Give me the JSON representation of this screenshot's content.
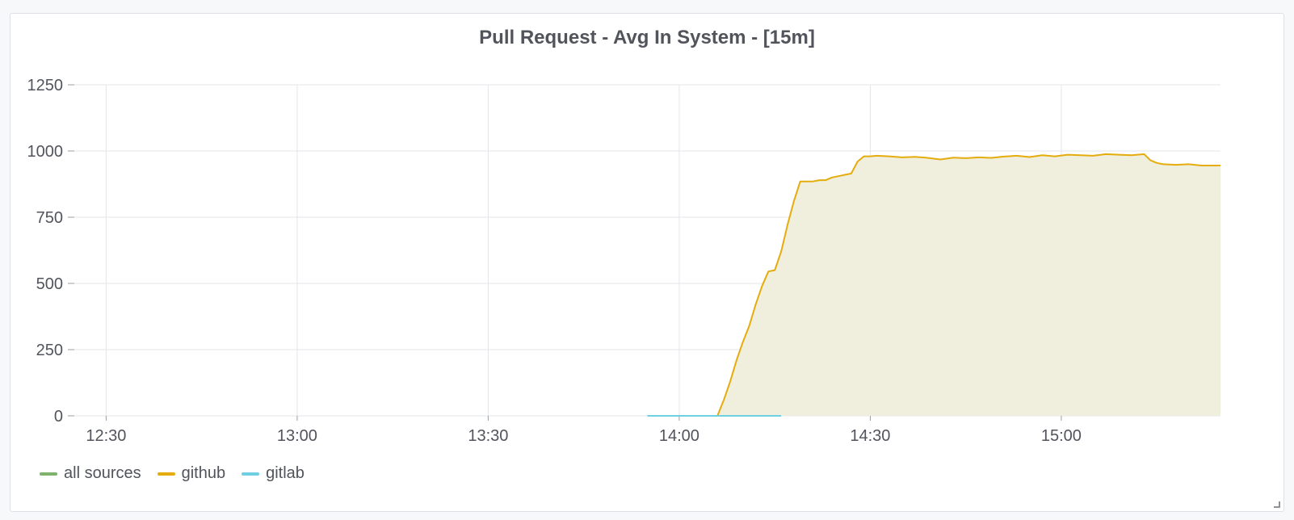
{
  "panel": {
    "title": "Pull Request - Avg In System - [15m]"
  },
  "chart_data": {
    "type": "area",
    "title": "Pull Request - Avg In System - [15m]",
    "x_domain": [
      "12:25",
      "15:25"
    ],
    "x_ticks": [
      "12:30",
      "13:00",
      "13:30",
      "14:00",
      "14:30",
      "15:00"
    ],
    "ylim": [
      0,
      1250
    ],
    "y_ticks": [
      0,
      250,
      500,
      750,
      1000,
      1250
    ],
    "grid": true,
    "legend_position": "bottom-left",
    "series": [
      {
        "name": "all sources",
        "color": "#7eb26d",
        "x": [],
        "values": []
      },
      {
        "name": "github",
        "color": "#e5ac0e",
        "fill": "#f0eedd",
        "x": [
          "14:06",
          "14:07",
          "14:08",
          "14:09",
          "14:10",
          "14:11",
          "14:12",
          "14:13",
          "14:14",
          "14:15",
          "14:16",
          "14:17",
          "14:18",
          "14:19",
          "14:20",
          "14:21",
          "14:22",
          "14:23",
          "14:24",
          "14:25",
          "14:26",
          "14:27",
          "14:28",
          "14:29",
          "14:30",
          "14:31",
          "14:33",
          "14:35",
          "14:37",
          "14:39",
          "14:41",
          "14:43",
          "14:45",
          "14:47",
          "14:49",
          "14:51",
          "14:53",
          "14:55",
          "14:57",
          "14:59",
          "15:01",
          "15:03",
          "15:05",
          "15:07",
          "15:09",
          "15:11",
          "15:13",
          "15:14",
          "15:15",
          "15:16",
          "15:18",
          "15:20",
          "15:22",
          "15:24",
          "15:25"
        ],
        "values": [
          0,
          60,
          130,
          210,
          280,
          340,
          420,
          490,
          545,
          550,
          620,
          720,
          810,
          885,
          885,
          885,
          890,
          890,
          900,
          905,
          910,
          915,
          960,
          980,
          980,
          982,
          980,
          976,
          978,
          974,
          968,
          975,
          973,
          976,
          974,
          979,
          982,
          977,
          984,
          980,
          986,
          984,
          982,
          988,
          986,
          984,
          988,
          965,
          955,
          950,
          948,
          950,
          945,
          945,
          945
        ]
      },
      {
        "name": "gitlab",
        "color": "#6ed0e0",
        "x": [
          "13:55",
          "14:16"
        ],
        "values": [
          0,
          0
        ]
      }
    ]
  }
}
